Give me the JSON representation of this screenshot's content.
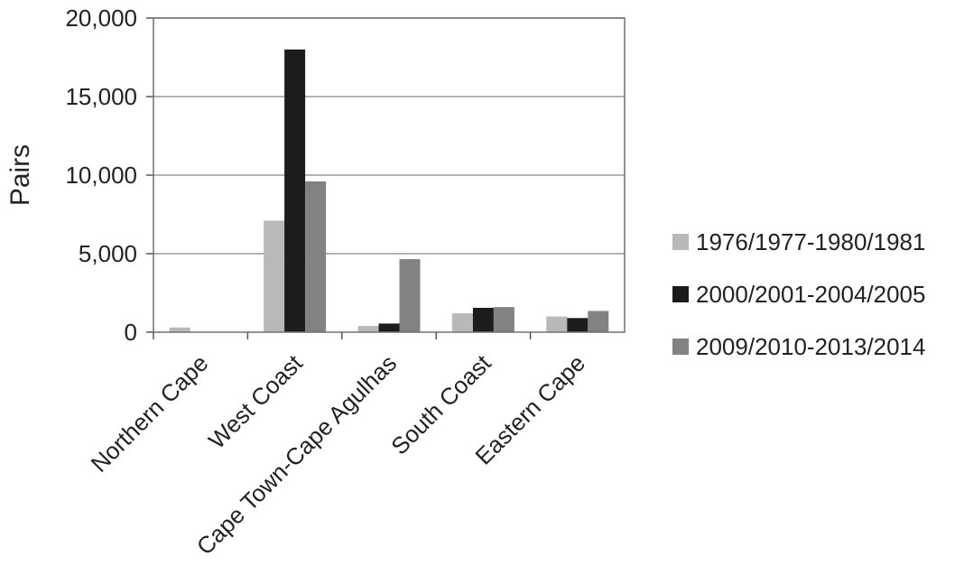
{
  "chart_data": {
    "type": "bar",
    "title": "",
    "xlabel": "",
    "ylabel": "Pairs",
    "ylim": [
      0,
      20000
    ],
    "yticks": [
      0,
      5000,
      10000,
      15000,
      20000
    ],
    "ytick_labels": [
      "0",
      "5,000",
      "10,000",
      "15,000",
      "20,000"
    ],
    "grid": true,
    "legend_position": "right",
    "categories": [
      "Northern Cape",
      "West Coast",
      "Cape Town-Cape Agulhas",
      "South Coast",
      "Eastern Cape"
    ],
    "series": [
      {
        "name": "1976/1977-1980/1981",
        "color": "#b9b9b9",
        "values": [
          300,
          7100,
          400,
          1200,
          1000
        ]
      },
      {
        "name": "2000/2001-2004/2005",
        "color": "#1c1c1c",
        "values": [
          0,
          18000,
          550,
          1550,
          900
        ]
      },
      {
        "name": "2009/2010-2013/2014",
        "color": "#828282",
        "values": [
          0,
          9600,
          4650,
          1600,
          1350
        ]
      }
    ]
  }
}
